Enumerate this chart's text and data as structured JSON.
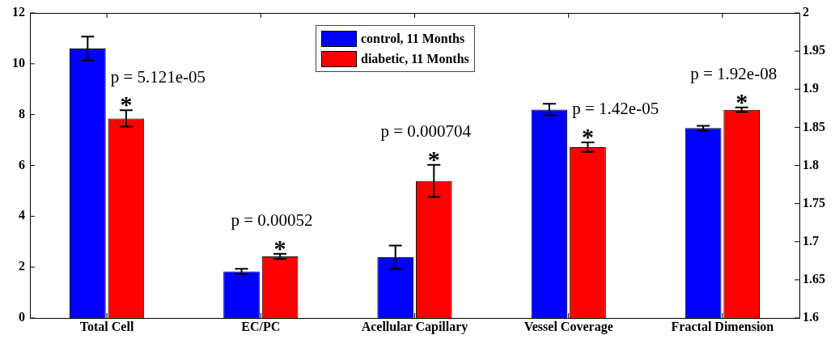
{
  "chart_data": {
    "type": "bar",
    "categories": [
      "Total Cell",
      "EC/PC",
      "Acellular Capillary",
      "Vessel Coverage",
      "Fractal Dimension"
    ],
    "series": [
      {
        "name": "control, 11 Months",
        "color": "#0000ff",
        "values": [
          10.6,
          1.83,
          2.39,
          8.2,
          null
        ],
        "errors": [
          0.47,
          0.1,
          0.46,
          0.23,
          null
        ]
      },
      {
        "name": "diabetic, 11 Months",
        "color": "#ff0000",
        "values": [
          7.85,
          2.42,
          5.39,
          6.72,
          null
        ],
        "errors": [
          0.32,
          0.1,
          0.63,
          0.19,
          null
        ],
        "value_labels": [
          "*",
          "*",
          "*",
          "*",
          null
        ]
      },
      {
        "color": "#0000ff",
        "axis": "y2",
        "values": [
          null,
          null,
          null,
          null,
          1.849
        ],
        "errors": [
          null,
          null,
          null,
          null,
          0.003
        ]
      },
      {
        "color": "#ff0000",
        "axis": "y2",
        "values": [
          null,
          null,
          null,
          null,
          1.873
        ],
        "errors": [
          null,
          null,
          null,
          null,
          0.003
        ],
        "value_labels": [
          null,
          null,
          null,
          null,
          "*"
        ]
      }
    ],
    "ylim": [
      0,
      12
    ],
    "yticks": [
      0,
      2,
      4,
      6,
      8,
      10,
      12
    ],
    "y2lim": [
      1.6,
      2
    ],
    "y2ticks": [
      1.6,
      1.65,
      1.7,
      1.75,
      1.8,
      1.85,
      1.9,
      1.95,
      2
    ],
    "annotations": [
      "p = 5.121e-05",
      "p = 0.00052",
      "p = 0.000704",
      "p = 1.42e-05",
      "p = 1.92e-08"
    ],
    "grid": false,
    "legend": "top"
  }
}
